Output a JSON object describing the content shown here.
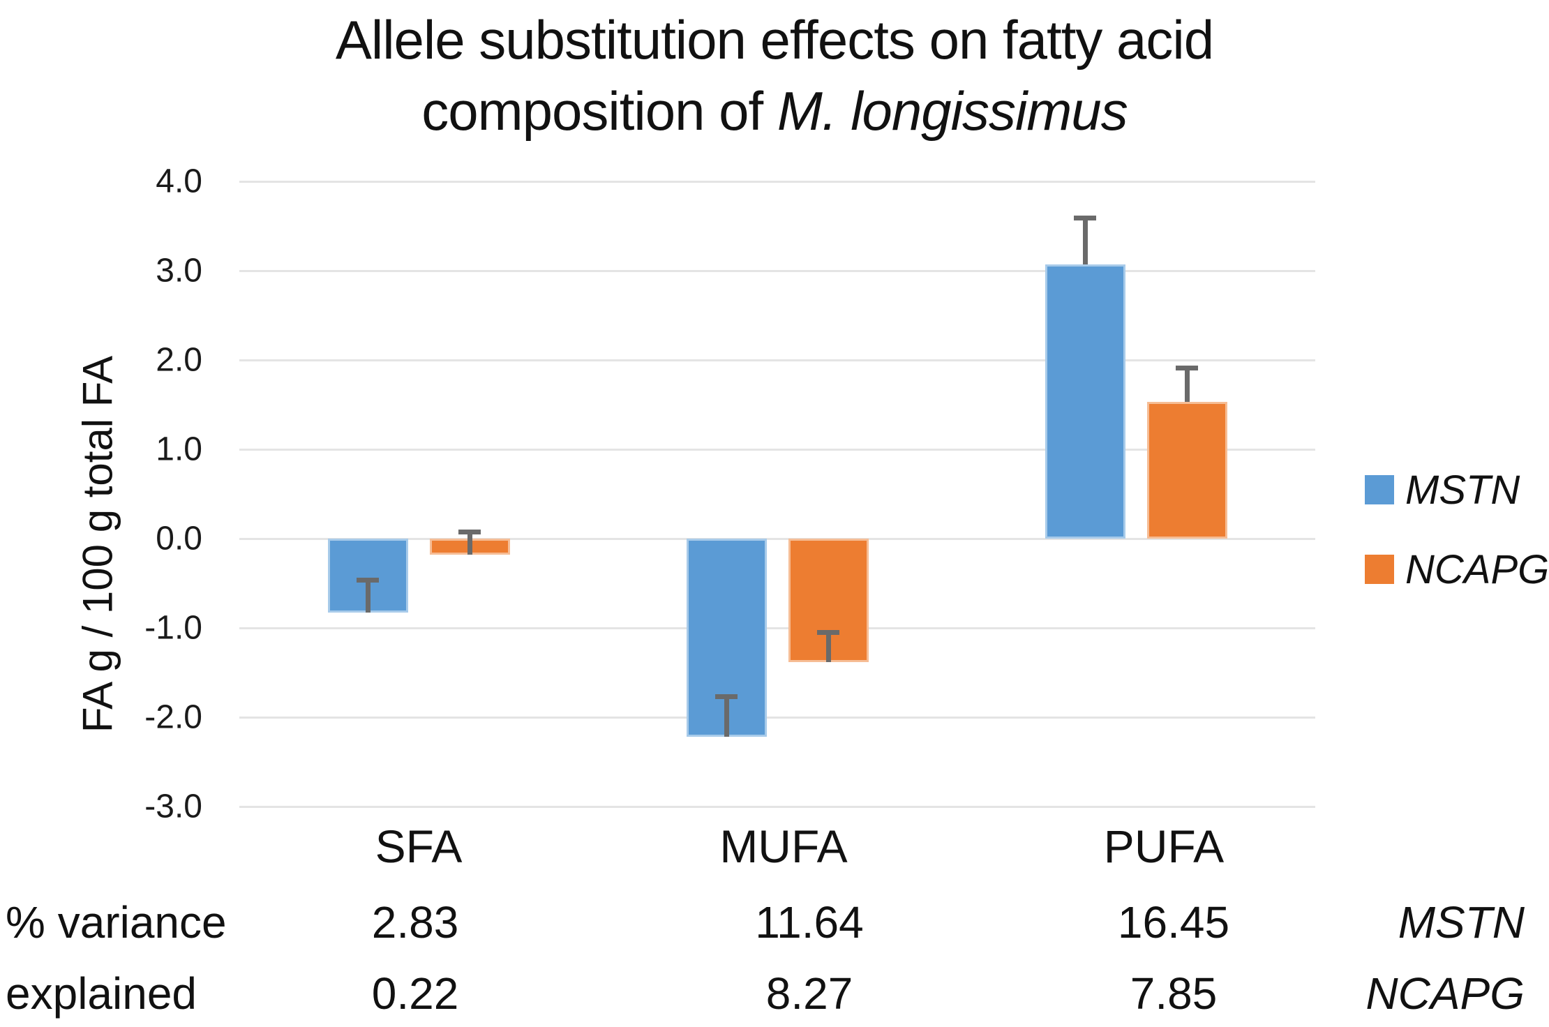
{
  "figure": {
    "title_line1": "Allele substitution effects on fatty acid",
    "title_line2_prefix": "composition of ",
    "title_line2_italic": "M. longissimus"
  },
  "chart_data": {
    "type": "bar",
    "title": "Allele substitution effects on fatty acid composition of M. longissimus",
    "xlabel": "",
    "ylabel": "FA g / 100 g total FA",
    "ylim": [
      -3.0,
      4.0
    ],
    "ytick_step": 1.0,
    "grid": true,
    "legend_position": "right",
    "categories": [
      "SFA",
      "MUFA",
      "PUFA"
    ],
    "series": [
      {
        "name": "MSTN",
        "color": "#5B9BD5",
        "edge_color": "#A8CBEA",
        "values": [
          -0.83,
          -2.22,
          3.07
        ],
        "error_plus": [
          0.34,
          0.42,
          0.49
        ]
      },
      {
        "name": "NCAPG",
        "color": "#ED7D31",
        "edge_color": "#F6BD95",
        "values": [
          -0.18,
          -1.38,
          1.53
        ],
        "error_plus": [
          0.23,
          0.3,
          0.35
        ]
      }
    ],
    "error_bar_color": "#6A6A6A",
    "gridline_color": "#E4E4E4"
  },
  "variance_table": {
    "label_line1": "% variance",
    "label_line2": "explained",
    "columns": [
      "SFA",
      "MUFA",
      "PUFA"
    ],
    "rows": [
      {
        "gene": "MSTN",
        "values": [
          "2.83",
          "11.64",
          "16.45"
        ]
      },
      {
        "gene": "NCAPG",
        "values": [
          "0.22",
          "8.27",
          "7.85"
        ]
      }
    ]
  },
  "legend": {
    "items": [
      {
        "label": "MSTN",
        "color": "#5B9BD5"
      },
      {
        "label": "NCAPG",
        "color": "#ED7D31"
      }
    ]
  }
}
